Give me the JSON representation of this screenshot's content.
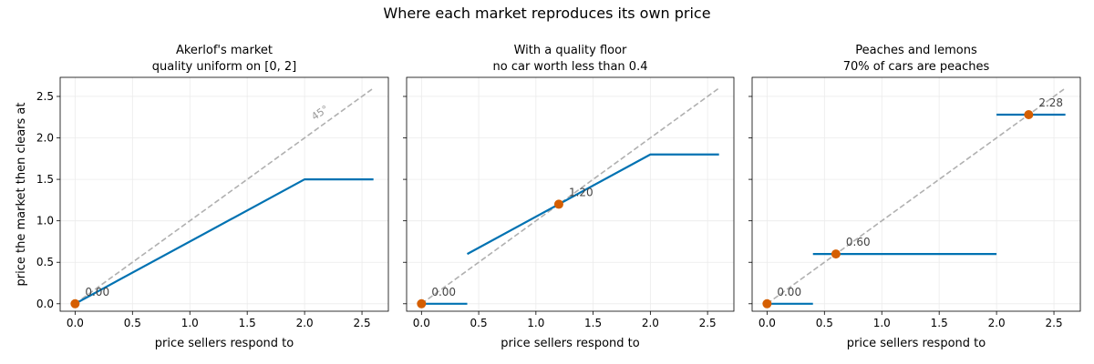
{
  "figure": {
    "title": "Where each market reproduces its own price"
  },
  "chart_data": [
    {
      "type": "line",
      "title": "Akerlof's market",
      "subtitle": "quality uniform on [0, 2]",
      "xlabel": "price sellers respond to",
      "ylabel": "price the market then clears at",
      "xlim": [
        -0.13,
        2.73
      ],
      "ylim": [
        -0.09,
        2.73
      ],
      "xticks": [
        0.0,
        0.5,
        1.0,
        1.5,
        2.0,
        2.5
      ],
      "yticks": [
        0.0,
        0.5,
        1.0,
        1.5,
        2.0,
        2.5
      ],
      "grid": true,
      "reference_line": {
        "from": [
          0,
          0
        ],
        "to": [
          2.6,
          2.6
        ],
        "label": "45°",
        "label_at": [
          2.15,
          2.27
        ]
      },
      "segments": [
        [
          [
            0,
            0
          ],
          [
            2.0,
            1.5
          ],
          [
            2.6,
            1.5
          ]
        ]
      ],
      "fixed_points": [
        {
          "x": 0.0,
          "y": 0.0,
          "label": "0.00"
        }
      ],
      "colors": {
        "series": "#0072b2",
        "points": "#d55e00",
        "reference": "#b0b0b0"
      }
    },
    {
      "type": "line",
      "title": "With a quality floor",
      "subtitle": "no car worth less than 0.4",
      "xlabel": "price sellers respond to",
      "ylabel": "",
      "xlim": [
        -0.13,
        2.73
      ],
      "ylim": [
        -0.09,
        2.73
      ],
      "xticks": [
        0.0,
        0.5,
        1.0,
        1.5,
        2.0,
        2.5
      ],
      "yticks": [
        0.0,
        0.5,
        1.0,
        1.5,
        2.0,
        2.5
      ],
      "grid": true,
      "reference_line": {
        "from": [
          0,
          0
        ],
        "to": [
          2.6,
          2.6
        ],
        "label": ""
      },
      "segments": [
        [
          [
            0,
            0
          ],
          [
            0.4,
            0
          ]
        ],
        [
          [
            0.4,
            0.6
          ],
          [
            2.0,
            1.8
          ],
          [
            2.6,
            1.8
          ]
        ]
      ],
      "fixed_points": [
        {
          "x": 0.0,
          "y": 0.0,
          "label": "0.00"
        },
        {
          "x": 1.2,
          "y": 1.2,
          "label": "1.20"
        }
      ],
      "colors": {
        "series": "#0072b2",
        "points": "#d55e00",
        "reference": "#b0b0b0"
      }
    },
    {
      "type": "line",
      "title": "Peaches and lemons",
      "subtitle": "70% of cars are peaches",
      "xlabel": "price sellers respond to",
      "ylabel": "",
      "xlim": [
        -0.13,
        2.73
      ],
      "ylim": [
        -0.09,
        2.73
      ],
      "xticks": [
        0.0,
        0.5,
        1.0,
        1.5,
        2.0,
        2.5
      ],
      "yticks": [
        0.0,
        0.5,
        1.0,
        1.5,
        2.0,
        2.5
      ],
      "grid": true,
      "reference_line": {
        "from": [
          0,
          0
        ],
        "to": [
          2.6,
          2.6
        ],
        "label": ""
      },
      "segments": [
        [
          [
            0,
            0
          ],
          [
            0.4,
            0
          ]
        ],
        [
          [
            0.4,
            0.6
          ],
          [
            2.0,
            0.6
          ]
        ],
        [
          [
            2.0,
            2.28
          ],
          [
            2.6,
            2.28
          ]
        ]
      ],
      "fixed_points": [
        {
          "x": 0.0,
          "y": 0.0,
          "label": "0.00"
        },
        {
          "x": 0.6,
          "y": 0.6,
          "label": "0.60"
        },
        {
          "x": 2.28,
          "y": 2.28,
          "label": "2.28"
        }
      ],
      "colors": {
        "series": "#0072b2",
        "points": "#d55e00",
        "reference": "#b0b0b0"
      }
    }
  ]
}
